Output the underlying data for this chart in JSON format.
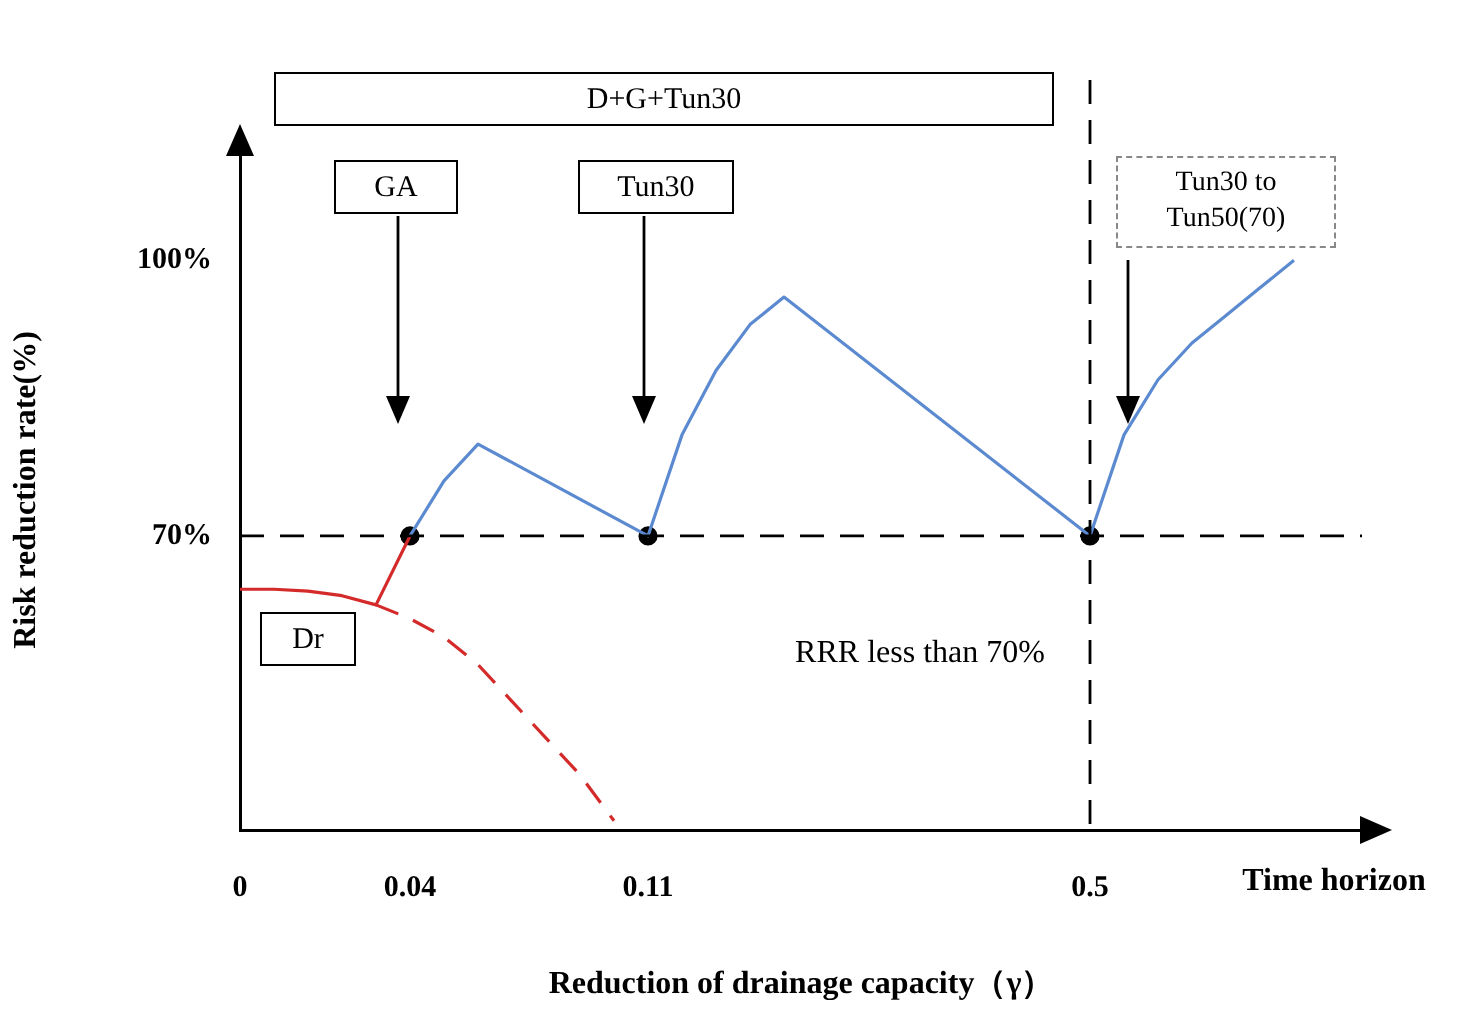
{
  "chart_data": {
    "type": "line",
    "xlabel": "Reduction of drainage capacity（γ）",
    "ylabel": "Risk reduction rate(%)",
    "categories": [
      "0",
      null,
      null,
      null,
      null,
      "0.04",
      null,
      null,
      null,
      null,
      null,
      null,
      "0.11",
      null,
      null,
      null,
      null,
      null,
      null,
      null,
      null,
      null,
      null,
      null,
      null,
      "0.5",
      null,
      null,
      null,
      null,
      null,
      null,
      null,
      null
    ],
    "ylim": [
      38,
      112
    ],
    "yticks": [
      {
        "value": 70,
        "label": "70%"
      },
      {
        "value": 100,
        "label": "100%"
      }
    ],
    "grid": false,
    "legend": false,
    "series": [
      {
        "color": "#5b8ad0",
        "line_style": "solid",
        "marker": "none",
        "values": [
          null,
          null,
          null,
          null,
          null,
          70,
          76,
          80,
          null,
          null,
          null,
          null,
          70,
          81,
          88,
          93,
          96,
          null,
          null,
          null,
          null,
          null,
          null,
          null,
          null,
          70,
          81,
          87,
          91,
          94,
          97,
          100,
          null,
          null
        ]
      },
      {
        "color": "#d42a2a",
        "line_style": "solid",
        "marker": "none",
        "values": [
          64.2,
          64.2,
          64,
          63.5,
          62.5,
          70,
          null,
          null,
          null,
          null,
          null,
          null,
          null,
          null,
          null,
          null,
          null,
          null,
          null,
          null,
          null,
          null,
          null,
          null,
          null,
          null,
          null,
          null,
          null,
          null,
          null,
          null,
          null,
          null
        ]
      },
      {
        "color": "#d42a2a",
        "line_style": "dashed",
        "marker": "none",
        "values": [
          null,
          null,
          null,
          null,
          62.5,
          61,
          59,
          56,
          52,
          48,
          44,
          39,
          null,
          null,
          null,
          null,
          null,
          null,
          null,
          null,
          null,
          null,
          null,
          null,
          null,
          null,
          null,
          null,
          null,
          null,
          null,
          null,
          null,
          null
        ]
      },
      {
        "type": "scatter",
        "color": "#000000",
        "marker": "circle",
        "x": [
          "0.04",
          "0.11",
          "0.5"
        ],
        "values": [
          70,
          70,
          70
        ]
      }
    ],
    "ref_lines": [
      {
        "axis": "y",
        "value": 70,
        "color": "#000000",
        "line_style": "dashed"
      },
      {
        "axis": "x",
        "value": "0.5",
        "color": "#000000",
        "line_style": "dashed"
      }
    ],
    "annotations": [
      "D+G+Tun30",
      "GA",
      "Tun30",
      "Tun30 to Tun50(70)",
      "Dr",
      "RRR less than 70%",
      "Time horizon"
    ]
  }
}
